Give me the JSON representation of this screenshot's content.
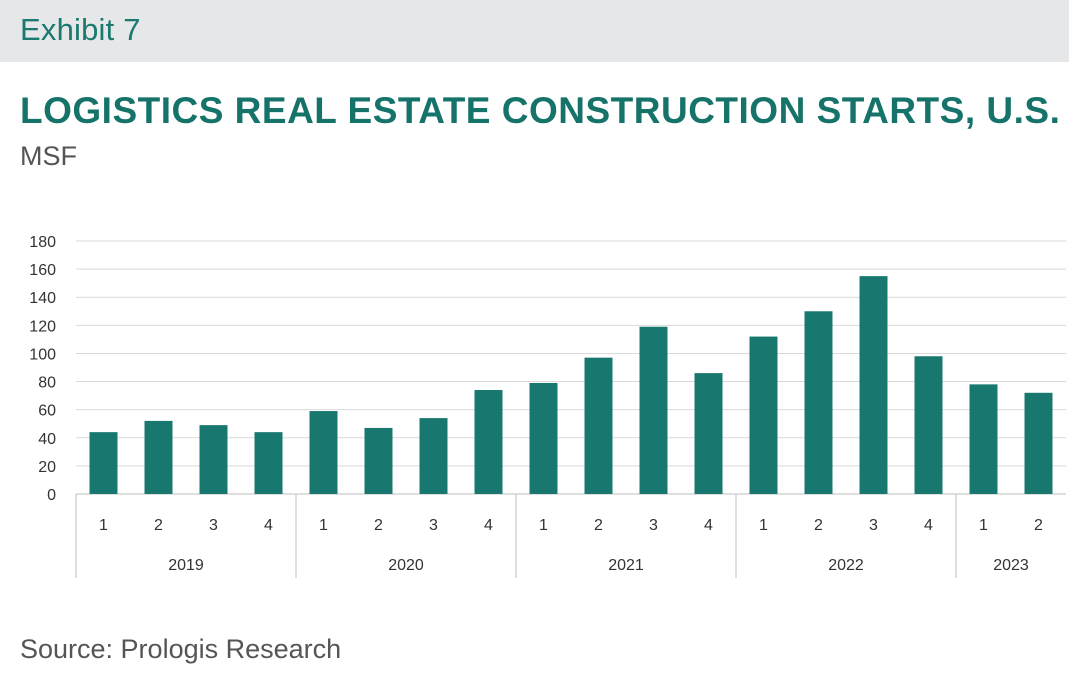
{
  "header": {
    "exhibit": "Exhibit 7"
  },
  "footer": {
    "source": "Source: Prologis Research"
  },
  "colors": {
    "bar": "#187870",
    "grid": "#d9d9d9",
    "axis": "#bfbfbf",
    "title": "#16736a"
  },
  "chart_data": {
    "type": "bar",
    "title": "LOGISTICS REAL ESTATE CONSTRUCTION STARTS, U.S.",
    "subtitle": "MSF",
    "xlabel": "",
    "ylabel": "",
    "ylim": [
      0,
      180
    ],
    "yticks": [
      0,
      20,
      40,
      60,
      80,
      100,
      120,
      140,
      160,
      180
    ],
    "grid": true,
    "legend": "none",
    "categories": [
      {
        "quarter": "1",
        "year": "2019"
      },
      {
        "quarter": "2",
        "year": "2019"
      },
      {
        "quarter": "3",
        "year": "2019"
      },
      {
        "quarter": "4",
        "year": "2019"
      },
      {
        "quarter": "1",
        "year": "2020"
      },
      {
        "quarter": "2",
        "year": "2020"
      },
      {
        "quarter": "3",
        "year": "2020"
      },
      {
        "quarter": "4",
        "year": "2020"
      },
      {
        "quarter": "1",
        "year": "2021"
      },
      {
        "quarter": "2",
        "year": "2021"
      },
      {
        "quarter": "3",
        "year": "2021"
      },
      {
        "quarter": "4",
        "year": "2021"
      },
      {
        "quarter": "1",
        "year": "2022"
      },
      {
        "quarter": "2",
        "year": "2022"
      },
      {
        "quarter": "3",
        "year": "2022"
      },
      {
        "quarter": "4",
        "year": "2022"
      },
      {
        "quarter": "1",
        "year": "2023"
      },
      {
        "quarter": "2",
        "year": "2023"
      }
    ],
    "years": [
      "2019",
      "2020",
      "2021",
      "2022",
      "2023"
    ],
    "values": [
      44,
      52,
      49,
      44,
      59,
      47,
      54,
      74,
      79,
      97,
      119,
      86,
      112,
      130,
      155,
      98,
      78,
      72
    ]
  }
}
